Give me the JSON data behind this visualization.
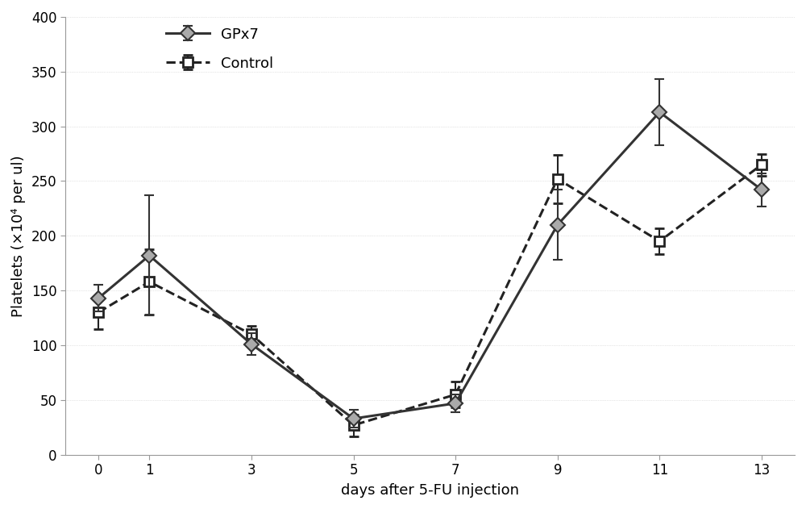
{
  "x": [
    0,
    1,
    3,
    5,
    7,
    9,
    11,
    13
  ],
  "gpx7_y": [
    143,
    182,
    101,
    33,
    47,
    210,
    313,
    242
  ],
  "gpx7_err": [
    12,
    55,
    10,
    8,
    8,
    32,
    30,
    15
  ],
  "control_y": [
    130,
    158,
    110,
    27,
    55,
    252,
    195,
    265
  ],
  "control_err": [
    15,
    30,
    8,
    10,
    12,
    22,
    12,
    10
  ],
  "xlabel": "days after 5-FU injection",
  "ylabel": "Platelets (×10⁴ per ul)",
  "ylim": [
    0,
    400
  ],
  "yticks": [
    0,
    50,
    100,
    150,
    200,
    250,
    300,
    350,
    400
  ],
  "xtick_labels": [
    "0",
    "1",
    "3",
    "5",
    "7",
    "9",
    "11",
    "13"
  ],
  "legend_gpx7": "GPx7",
  "legend_control": "Control",
  "gpx7_color": "#333333",
  "control_color": "#222222",
  "line_width": 2.2,
  "marker_size": 9,
  "capsize": 4,
  "bg_color": "#ffffff",
  "label_fontsize": 13,
  "tick_fontsize": 12,
  "legend_fontsize": 13
}
